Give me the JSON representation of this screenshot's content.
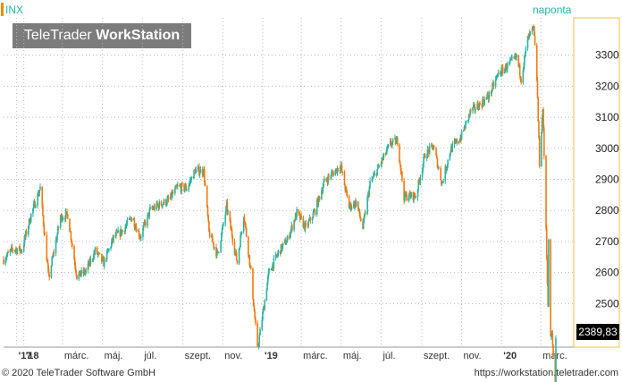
{
  "header": {
    "ticker": "INX",
    "period": "naponta"
  },
  "logo": {
    "brand": "TeleTrader",
    "product": "WorkStation"
  },
  "last_value_label": "2389,83",
  "footer": {
    "copyright": "© 2020 TeleTrader Software GmbH",
    "url": "https://workstation.teletrader.com"
  },
  "colors": {
    "up": "#2bb3a3",
    "down": "#f07a10",
    "accent": "#f08a00",
    "axis_frame": "#f2c050",
    "grid": "#bbbbbb"
  },
  "chart_data": {
    "type": "candlestick",
    "ylim": [
      2360,
      3420
    ],
    "yticks": [
      2500,
      2600,
      2700,
      2800,
      2900,
      3000,
      3100,
      3200,
      3300
    ],
    "ytick_labels": [
      "2500",
      "2600",
      "2700",
      "2800",
      "2900",
      "3000",
      "3100",
      "3200",
      "3300"
    ],
    "xticks": [
      {
        "label": "'17",
        "date": "2017-12-21"
      },
      {
        "label": "'18",
        "date": "2018-01-01"
      },
      {
        "label": "márc.",
        "date": "2018-03-01"
      },
      {
        "label": "máj.",
        "date": "2018-05-01"
      },
      {
        "label": "júl.",
        "date": "2018-07-01"
      },
      {
        "label": "szept.",
        "date": "2018-09-01"
      },
      {
        "label": "nov.",
        "date": "2018-11-01"
      },
      {
        "label": "'19",
        "date": "2019-01-01"
      },
      {
        "label": "márc.",
        "date": "2019-03-01"
      },
      {
        "label": "máj.",
        "date": "2019-05-01"
      },
      {
        "label": "júl.",
        "date": "2019-07-01"
      },
      {
        "label": "szept.",
        "date": "2019-09-01"
      },
      {
        "label": "nov.",
        "date": "2019-11-01"
      },
      {
        "label": "'20",
        "date": "2020-01-01"
      },
      {
        "label": "márc.",
        "date": "2020-03-01"
      }
    ],
    "x_range": [
      "2017-12-01",
      "2020-03-24"
    ],
    "series": [
      {
        "name": "INX",
        "close": [
          [
            "2017-12-01",
            2642
          ],
          [
            "2017-12-15",
            2675
          ],
          [
            "2017-12-29",
            2673
          ],
          [
            "2018-01-12",
            2786
          ],
          [
            "2018-01-26",
            2872
          ],
          [
            "2018-02-08",
            2581
          ],
          [
            "2018-02-26",
            2779
          ],
          [
            "2018-03-09",
            2786
          ],
          [
            "2018-03-23",
            2588
          ],
          [
            "2018-04-06",
            2604
          ],
          [
            "2018-04-20",
            2670
          ],
          [
            "2018-05-03",
            2630
          ],
          [
            "2018-05-18",
            2712
          ],
          [
            "2018-06-01",
            2735
          ],
          [
            "2018-06-15",
            2779
          ],
          [
            "2018-06-28",
            2716
          ],
          [
            "2018-07-13",
            2801
          ],
          [
            "2018-07-27",
            2818
          ],
          [
            "2018-08-10",
            2833
          ],
          [
            "2018-08-24",
            2875
          ],
          [
            "2018-09-07",
            2871
          ],
          [
            "2018-09-20",
            2930
          ],
          [
            "2018-10-03",
            2925
          ],
          [
            "2018-10-11",
            2728
          ],
          [
            "2018-10-24",
            2656
          ],
          [
            "2018-11-07",
            2813
          ],
          [
            "2018-11-23",
            2632
          ],
          [
            "2018-12-03",
            2790
          ],
          [
            "2018-12-14",
            2600
          ],
          [
            "2018-12-24",
            2351
          ],
          [
            "2019-01-10",
            2596
          ],
          [
            "2019-01-25",
            2664
          ],
          [
            "2019-02-08",
            2707
          ],
          [
            "2019-02-22",
            2792
          ],
          [
            "2019-03-08",
            2743
          ],
          [
            "2019-03-22",
            2800
          ],
          [
            "2019-04-05",
            2892
          ],
          [
            "2019-04-30",
            2945
          ],
          [
            "2019-05-13",
            2811
          ],
          [
            "2019-05-24",
            2826
          ],
          [
            "2019-06-03",
            2744
          ],
          [
            "2019-06-14",
            2886
          ],
          [
            "2019-06-28",
            2942
          ],
          [
            "2019-07-15",
            3014
          ],
          [
            "2019-07-26",
            3025
          ],
          [
            "2019-08-05",
            2844
          ],
          [
            "2019-08-15",
            2847
          ],
          [
            "2019-08-23",
            2847
          ],
          [
            "2019-09-06",
            2979
          ],
          [
            "2019-09-19",
            3006
          ],
          [
            "2019-10-02",
            2887
          ],
          [
            "2019-10-15",
            2995
          ],
          [
            "2019-10-31",
            3037
          ],
          [
            "2019-11-15",
            3120
          ],
          [
            "2019-11-29",
            3141
          ],
          [
            "2019-12-13",
            3169
          ],
          [
            "2019-12-27",
            3240
          ],
          [
            "2020-01-10",
            3265
          ],
          [
            "2020-01-24",
            3295
          ],
          [
            "2020-01-31",
            3225
          ],
          [
            "2020-02-10",
            3352
          ],
          [
            "2020-02-19",
            3386
          ],
          [
            "2020-02-24",
            3225
          ],
          [
            "2020-02-28",
            2954
          ],
          [
            "2020-03-04",
            3130
          ],
          [
            "2020-03-09",
            2746
          ],
          [
            "2020-03-12",
            2480
          ],
          [
            "2020-03-13",
            2711
          ],
          [
            "2020-03-16",
            2386
          ],
          [
            "2020-03-18",
            2398
          ],
          [
            "2020-03-23",
            2237
          ],
          [
            "2020-03-24",
            2389.83
          ]
        ]
      }
    ]
  }
}
